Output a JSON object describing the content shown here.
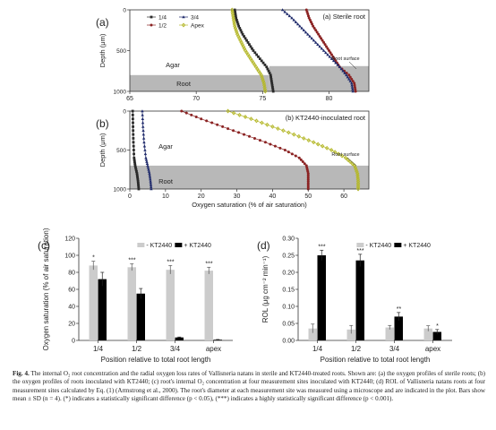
{
  "caption": {
    "label": "Fig. 4.",
    "text": "The internal O₂ root concentration and the radial oxygen loss rates of Vallisneria natans in sterile and KT2440-treated roots. Shown are: (a) the oxygen profiles of sterile roots; (b) the oxygen profiles of roots inoculated with KT2440; (c) root's internal O₂ concentration at four measurement sites inoculated with KT2440; (d) ROL of Vallisneria natans roots at four measurement sites calculated by Eq. (1) (Armstrong et al., 2000). The root's diameter at each measurement site was measured using a microscope and are indicated in the plot. Bars show mean ± SD (n = 4). (*) indicates a statistically significant difference (p < 0.05), (***) indicates a highly statistically significant difference (p < 0.001)."
  },
  "colors": {
    "s14": "#2b2b2b",
    "s12": "#8b2323",
    "s34": "#1f2a6b",
    "sApex": "#b5b82a",
    "root": "#b8b8b8",
    "barMinus": "#cccccc",
    "barPlus": "#000000"
  },
  "chart_data": [
    {
      "id": "a",
      "type": "scatter",
      "panel_label": "(a)",
      "title": "(a) Sterile root",
      "ylabel": "Depth (μm)",
      "xlabel": "",
      "xlim": [
        65,
        83
      ],
      "ylim": [
        0,
        1000
      ],
      "y_inverted": true,
      "xticks": [
        65,
        70,
        75,
        80
      ],
      "yticks": [
        0,
        500,
        1000
      ],
      "legend": [
        "1/4",
        "3/4",
        "1/2",
        "Apex"
      ],
      "annotations": [
        "Agar",
        "Root",
        "Root surface"
      ],
      "root_zone": [
        {
          "from_depth": 800,
          "to_depth": 1000,
          "to_x": 75.5
        },
        {
          "from_depth": 690,
          "to_depth": 1000,
          "from_x": 75.5
        }
      ],
      "series": [
        {
          "name": "1/4",
          "points": [
            [
              72.9,
              0
            ],
            [
              73.0,
              100
            ],
            [
              73.2,
              200
            ],
            [
              73.5,
              300
            ],
            [
              73.9,
              400
            ],
            [
              74.3,
              500
            ],
            [
              74.8,
              600
            ],
            [
              75.3,
              700
            ],
            [
              75.6,
              800
            ],
            [
              75.7,
              900
            ],
            [
              75.8,
              1000
            ]
          ]
        },
        {
          "name": "1/2",
          "points": [
            [
              78.3,
              0
            ],
            [
              78.5,
              100
            ],
            [
              78.8,
              200
            ],
            [
              79.2,
              300
            ],
            [
              79.6,
              400
            ],
            [
              80.0,
              500
            ],
            [
              80.4,
              600
            ],
            [
              80.8,
              700
            ],
            [
              81.5,
              800
            ],
            [
              81.9,
              900
            ],
            [
              82.0,
              1000
            ]
          ]
        },
        {
          "name": "3/4",
          "points": [
            [
              76.5,
              0
            ],
            [
              77.2,
              100
            ],
            [
              77.8,
              200
            ],
            [
              78.4,
              300
            ],
            [
              79.0,
              400
            ],
            [
              79.6,
              500
            ],
            [
              80.2,
              600
            ],
            [
              80.8,
              700
            ],
            [
              81.3,
              800
            ],
            [
              81.7,
              900
            ],
            [
              81.8,
              1000
            ]
          ]
        },
        {
          "name": "Apex",
          "points": [
            [
              72.7,
              0
            ],
            [
              72.8,
              100
            ],
            [
              72.9,
              200
            ],
            [
              73.1,
              300
            ],
            [
              73.4,
              400
            ],
            [
              73.7,
              500
            ],
            [
              74.1,
              600
            ],
            [
              74.5,
              700
            ],
            [
              74.9,
              800
            ],
            [
              75.1,
              900
            ],
            [
              75.2,
              1000
            ]
          ]
        }
      ]
    },
    {
      "id": "b",
      "type": "scatter",
      "panel_label": "(b)",
      "title": "(b) KT2440-inoculated root",
      "ylabel": "Depth (μm)",
      "xlabel": "Oxygen saturation (% of air saturation)",
      "xlim": [
        0,
        67
      ],
      "ylim": [
        0,
        1000
      ],
      "y_inverted": true,
      "xticks": [
        0,
        10,
        20,
        30,
        40,
        50,
        60
      ],
      "yticks": [
        0,
        500,
        1000
      ],
      "annotations": [
        "Agar",
        "Root",
        "Root surface"
      ],
      "root_zone": [
        {
          "from_depth": 700,
          "to_depth": 1000
        }
      ],
      "series": [
        {
          "name": "1/4",
          "points": [
            [
              0.8,
              0
            ],
            [
              0.9,
              200
            ],
            [
              1.0,
              400
            ],
            [
              1.2,
              600
            ],
            [
              1.5,
              700
            ],
            [
              2.0,
              800
            ],
            [
              2.3,
              900
            ],
            [
              2.5,
              1000
            ]
          ]
        },
        {
          "name": "1/2",
          "points": [
            [
              14.5,
              0
            ],
            [
              20.0,
              100
            ],
            [
              26.0,
              200
            ],
            [
              32.0,
              300
            ],
            [
              38.0,
              400
            ],
            [
              43.5,
              500
            ],
            [
              47.5,
              600
            ],
            [
              49.5,
              700
            ],
            [
              50.0,
              800
            ],
            [
              50.0,
              900
            ],
            [
              50.0,
              1000
            ]
          ]
        },
        {
          "name": "3/4",
          "points": [
            [
              3.5,
              0
            ],
            [
              3.7,
              200
            ],
            [
              4.0,
              400
            ],
            [
              4.5,
              600
            ],
            [
              5.0,
              700
            ],
            [
              5.5,
              800
            ],
            [
              5.8,
              900
            ],
            [
              6.0,
              1000
            ]
          ]
        },
        {
          "name": "Apex",
          "points": [
            [
              27.5,
              0
            ],
            [
              34.0,
              100
            ],
            [
              40.0,
              200
            ],
            [
              46.0,
              300
            ],
            [
              51.5,
              400
            ],
            [
              56.5,
              500
            ],
            [
              60.5,
              600
            ],
            [
              63.0,
              700
            ],
            [
              63.8,
              800
            ],
            [
              64.0,
              900
            ],
            [
              64.0,
              1000
            ]
          ]
        }
      ]
    },
    {
      "id": "c",
      "type": "bar",
      "panel_label": "(c)",
      "ylabel": "Oxygen saturation (% of air saturation)",
      "xlabel": "Position relative to total root length",
      "categories": [
        "1/4",
        "1/2",
        "3/4",
        "apex"
      ],
      "ylim": [
        0,
        120
      ],
      "yticks": [
        0,
        20,
        40,
        60,
        80,
        100,
        120
      ],
      "legend": [
        "- KT2440",
        "+ KT2440"
      ],
      "series": [
        {
          "name": "- KT2440",
          "values": [
            88,
            86,
            83,
            82
          ],
          "errors": [
            5,
            4,
            5,
            4
          ]
        },
        {
          "name": "+ KT2440",
          "values": [
            72,
            55,
            3.5,
            0.8
          ],
          "errors": [
            8,
            6,
            0.5,
            0.3
          ]
        }
      ],
      "significance": [
        "*",
        "***",
        "***",
        "***"
      ]
    },
    {
      "id": "d",
      "type": "bar",
      "panel_label": "(d)",
      "ylabel": "ROL (μg cm⁻² min⁻¹)",
      "xlabel": "Position relative to total root length",
      "categories": [
        "1/4",
        "1/2",
        "3/4",
        "apex"
      ],
      "ylim": [
        0,
        0.3
      ],
      "yticks": [
        "0.00",
        "0.05",
        "0.10",
        "0.15",
        "0.20",
        "0.25",
        "0.30"
      ],
      "legend": [
        "- KT2440",
        "+ KT2440"
      ],
      "series": [
        {
          "name": "- KT2440",
          "values": [
            0.035,
            0.032,
            0.038,
            0.035
          ],
          "errors": [
            0.013,
            0.012,
            0.006,
            0.008
          ]
        },
        {
          "name": "+ KT2440",
          "values": [
            0.25,
            0.235,
            0.07,
            0.025
          ],
          "errors": [
            0.015,
            0.018,
            0.012,
            0.007
          ]
        }
      ],
      "significance": [
        "***",
        "***",
        "**",
        "*"
      ]
    }
  ]
}
